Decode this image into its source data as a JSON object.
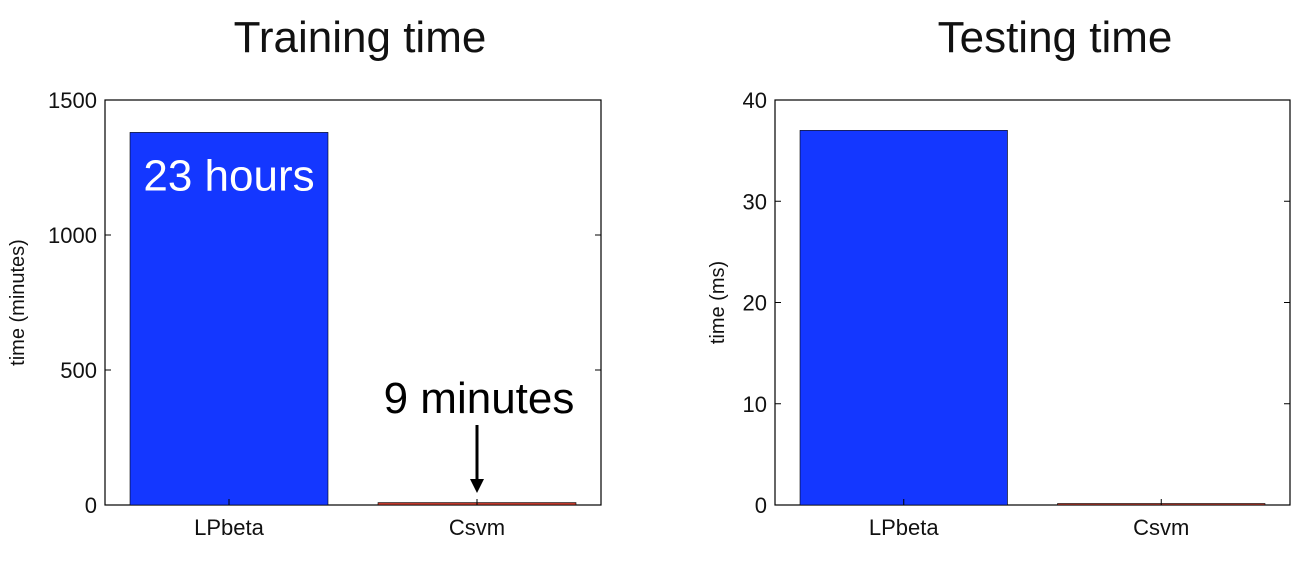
{
  "chart_data": [
    {
      "type": "bar",
      "title": "Training time",
      "ylabel": "time (minutes)",
      "categories": [
        "LPbeta",
        "Csvm"
      ],
      "values": [
        1380,
        9
      ],
      "ylim": [
        0,
        1500
      ],
      "yticks": [
        "0",
        "500",
        "1000",
        "1500"
      ],
      "bar_colors": [
        "#1437ff",
        "#c0392b"
      ],
      "annotations": {
        "bar_label": "23 hours",
        "arrow_label": "9 minutes"
      }
    },
    {
      "type": "bar",
      "title": "Testing time",
      "ylabel": "time (ms)",
      "categories": [
        "LPbeta",
        "Csvm"
      ],
      "values": [
        37,
        0.1
      ],
      "ylim": [
        0,
        40
      ],
      "yticks": [
        "0",
        "10",
        "20",
        "30",
        "40"
      ],
      "bar_colors": [
        "#1437ff",
        "#c0392b"
      ]
    }
  ]
}
